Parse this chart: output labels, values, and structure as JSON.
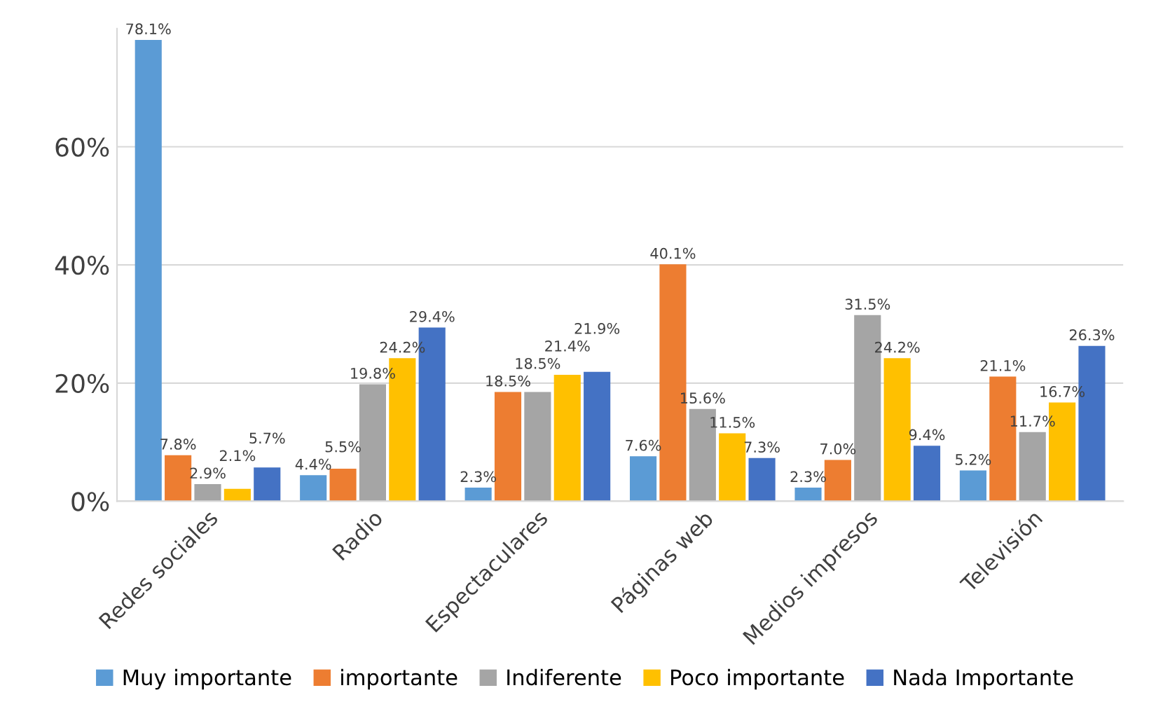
{
  "chart_data": {
    "type": "bar",
    "categories": [
      "Redes sociales",
      "Radio",
      "Espectaculares",
      "Páginas web",
      "Medios impresos",
      "Televisión"
    ],
    "series": [
      {
        "name": "Muy importante",
        "color": "#5b9bd5",
        "values": [
          78.1,
          4.4,
          2.3,
          7.6,
          2.3,
          5.2
        ],
        "value_labels": [
          "78.1%",
          "4.4%",
          "2.3%",
          "7.6%",
          "2.3%",
          "5.2%"
        ]
      },
      {
        "name": "importante",
        "color": "#ed7d31",
        "values": [
          7.8,
          5.5,
          18.5,
          40.1,
          7.0,
          21.1
        ],
        "value_labels": [
          "7.8%",
          "5.5%",
          "18.5%",
          "40.1%",
          "7.0%",
          "21.1%"
        ]
      },
      {
        "name": "Indiferente",
        "color": "#a5a5a5",
        "values": [
          2.9,
          19.8,
          18.5,
          15.6,
          31.5,
          11.7
        ],
        "value_labels": [
          "2.9%",
          "19.8%",
          "18.5%",
          "15.6%",
          "31.5%",
          "11.7%"
        ]
      },
      {
        "name": "Poco importante",
        "color": "#ffc000",
        "values": [
          2.1,
          24.2,
          21.4,
          11.5,
          24.2,
          16.7
        ],
        "value_labels": [
          "2.1%",
          "24.2%",
          "21.4%",
          "11.5%",
          "24.2%",
          "16.7%"
        ]
      },
      {
        "name": "Nada Importante",
        "color": "#4472c4",
        "values": [
          5.7,
          29.4,
          21.9,
          7.3,
          9.4,
          26.3
        ],
        "value_labels": [
          "5.7%",
          "29.4%",
          "21.9%",
          "7.3%",
          "9.4%",
          "26.3%"
        ]
      }
    ],
    "ylim": [
      0,
      80
    ],
    "yticks": [
      {
        "value": 0,
        "label": "0%"
      },
      {
        "value": 20,
        "label": "20%"
      },
      {
        "value": 40,
        "label": "40%"
      },
      {
        "value": 60,
        "label": "60%"
      }
    ],
    "grid": "y",
    "legend": "bottom"
  }
}
